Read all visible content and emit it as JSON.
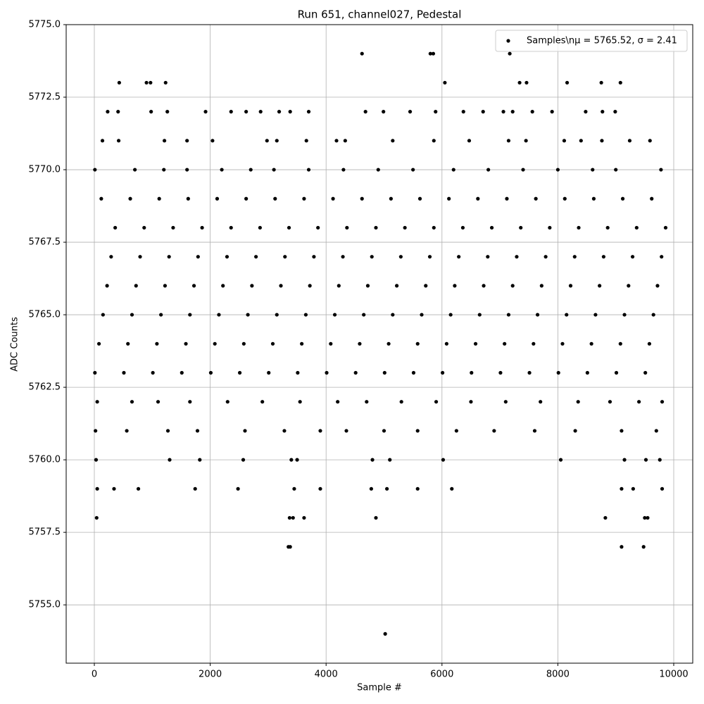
{
  "chart_data": {
    "type": "scatter",
    "title": "Run 651, channel027, Pedestal",
    "x_label": "Sample #",
    "y_label": "ADC Counts",
    "xlim": [
      -486,
      10328
    ],
    "ylim": [
      5752.99,
      5775
    ],
    "xticks": [
      0,
      2000,
      4000,
      6000,
      8000,
      10000
    ],
    "yticks": [
      {
        "value": 5755.0,
        "label": "5755.0"
      },
      5757.5,
      {
        "value": 5760.0,
        "label": "5760.0"
      },
      5762.5,
      {
        "value": 5765.0,
        "label": "5765.0"
      },
      5767.5,
      {
        "value": 5770.0,
        "label": "5770.0"
      },
      5772.5,
      {
        "value": 5775.0,
        "label": "5775.0"
      }
    ],
    "grid": true,
    "legend": "upper right",
    "series": [
      {
        "name": "Samples\\nμ = 5765.52, σ = 2.41",
        "color": "#000000",
        "x": [
          4620,
          5800,
          5850,
          7170,
          430,
          900,
          970,
          1230,
          6050,
          7340,
          7460,
          8160,
          8750,
          9080,
          5020,
          3350,
          3380,
          9100,
          9480,
          40,
          3370,
          3430,
          3620,
          4860,
          8820,
          9500,
          9550,
          10,
          510,
          1010,
          1510,
          2010,
          2510,
          3010,
          3510,
          4010,
          4510,
          5010,
          5510,
          6010,
          6510,
          7010,
          7510,
          8010,
          8510,
          9010,
          9510,
          80,
          580,
          1080,
          1580,
          2080,
          2580,
          3080,
          3580,
          4080,
          4580,
          5080,
          5580,
          6080,
          6580,
          7080,
          7580,
          8080,
          8580,
          9080,
          9580,
          150,
          650,
          1150,
          1650,
          2150,
          2650,
          3150,
          3650,
          4150,
          4650,
          5150,
          5650,
          6150,
          6650,
          7150,
          7650,
          8150,
          8650,
          9150,
          9650,
          220,
          720,
          1220,
          1720,
          2220,
          2720,
          3220,
          3720,
          4220,
          4720,
          5220,
          5720,
          6220,
          6720,
          7220,
          7720,
          8220,
          8720,
          9220,
          9720,
          290,
          790,
          1290,
          1790,
          2290,
          2790,
          3290,
          3790,
          4290,
          4790,
          5290,
          5790,
          6290,
          6790,
          7290,
          7790,
          8290,
          8790,
          9290,
          9790,
          360,
          860,
          1360,
          1860,
          2360,
          2860,
          3360,
          3860,
          4360,
          4860,
          5360,
          5860,
          6360,
          6860,
          7360,
          7860,
          8360,
          8860,
          9360,
          9860,
          120,
          620,
          1120,
          1620,
          2120,
          2620,
          3120,
          3620,
          4120,
          4620,
          5120,
          5620,
          6120,
          6620,
          7120,
          7620,
          8120,
          8620,
          9120,
          9620,
          30,
          1300,
          1820,
          2570,
          3400,
          3500,
          4800,
          5100,
          6020,
          8050,
          9150,
          9520,
          9760,
          20,
          560,
          1270,
          1780,
          2600,
          3280,
          3900,
          4350,
          5000,
          5580,
          6250,
          6900,
          7600,
          8300,
          9100,
          9700,
          50,
          650,
          1100,
          1650,
          2300,
          2900,
          3550,
          4200,
          4700,
          5300,
          5900,
          6500,
          7100,
          7700,
          8350,
          8900,
          9400,
          9800,
          10,
          700,
          1200,
          1600,
          2200,
          2700,
          3100,
          3700,
          4300,
          4900,
          5500,
          6200,
          6800,
          7400,
          8000,
          8600,
          9000,
          9780,
          50,
          340,
          760,
          1740,
          2480,
          3450,
          3900,
          4780,
          5050,
          5580,
          6170,
          9100,
          9300,
          9800,
          140,
          420,
          1210,
          1600,
          2040,
          2980,
          3150,
          3660,
          4180,
          4330,
          5150,
          5860,
          6470,
          7150,
          7450,
          8110,
          8400,
          8760,
          9240,
          9590,
          230,
          410,
          980,
          1260,
          1920,
          2360,
          2620,
          2870,
          3190,
          3380,
          3700,
          4680,
          4990,
          5450,
          5890,
          6370,
          6710,
          7060,
          7220,
          7560,
          7900,
          8480,
          8770,
          8990
        ],
        "values": [
          5774,
          5774,
          5774,
          5774,
          5773,
          5773,
          5773,
          5773,
          5773,
          5773,
          5773,
          5773,
          5773,
          5773,
          5754,
          5757,
          5757,
          5757,
          5757,
          5758,
          5758,
          5758,
          5758,
          5758,
          5758,
          5758,
          5758,
          5763,
          5763,
          5763,
          5763,
          5763,
          5763,
          5763,
          5763,
          5763,
          5763,
          5763,
          5763,
          5763,
          5763,
          5763,
          5763,
          5763,
          5763,
          5763,
          5763,
          5764,
          5764,
          5764,
          5764,
          5764,
          5764,
          5764,
          5764,
          5764,
          5764,
          5764,
          5764,
          5764,
          5764,
          5764,
          5764,
          5764,
          5764,
          5764,
          5764,
          5765,
          5765,
          5765,
          5765,
          5765,
          5765,
          5765,
          5765,
          5765,
          5765,
          5765,
          5765,
          5765,
          5765,
          5765,
          5765,
          5765,
          5765,
          5765,
          5765,
          5766,
          5766,
          5766,
          5766,
          5766,
          5766,
          5766,
          5766,
          5766,
          5766,
          5766,
          5766,
          5766,
          5766,
          5766,
          5766,
          5766,
          5766,
          5766,
          5766,
          5767,
          5767,
          5767,
          5767,
          5767,
          5767,
          5767,
          5767,
          5767,
          5767,
          5767,
          5767,
          5767,
          5767,
          5767,
          5767,
          5767,
          5767,
          5767,
          5767,
          5768,
          5768,
          5768,
          5768,
          5768,
          5768,
          5768,
          5768,
          5768,
          5768,
          5768,
          5768,
          5768,
          5768,
          5768,
          5768,
          5768,
          5768,
          5768,
          5768,
          5769,
          5769,
          5769,
          5769,
          5769,
          5769,
          5769,
          5769,
          5769,
          5769,
          5769,
          5769,
          5769,
          5769,
          5769,
          5769,
          5769,
          5769,
          5769,
          5769,
          5760,
          5760,
          5760,
          5760,
          5760,
          5760,
          5760,
          5760,
          5760,
          5760,
          5760,
          5760,
          5760,
          5761,
          5761,
          5761,
          5761,
          5761,
          5761,
          5761,
          5761,
          5761,
          5761,
          5761,
          5761,
          5761,
          5761,
          5761,
          5761,
          5762,
          5762,
          5762,
          5762,
          5762,
          5762,
          5762,
          5762,
          5762,
          5762,
          5762,
          5762,
          5762,
          5762,
          5762,
          5762,
          5762,
          5762,
          5770,
          5770,
          5770,
          5770,
          5770,
          5770,
          5770,
          5770,
          5770,
          5770,
          5770,
          5770,
          5770,
          5770,
          5770,
          5770,
          5770,
          5770,
          5759,
          5759,
          5759,
          5759,
          5759,
          5759,
          5759,
          5759,
          5759,
          5759,
          5759,
          5759,
          5759,
          5759,
          5771,
          5771,
          5771,
          5771,
          5771,
          5771,
          5771,
          5771,
          5771,
          5771,
          5771,
          5771,
          5771,
          5771,
          5771,
          5771,
          5771,
          5771,
          5771,
          5771,
          5772,
          5772,
          5772,
          5772,
          5772,
          5772,
          5772,
          5772,
          5772,
          5772,
          5772,
          5772,
          5772,
          5772,
          5772,
          5772,
          5772,
          5772,
          5772,
          5772,
          5772,
          5772,
          5772,
          5772
        ]
      }
    ]
  }
}
